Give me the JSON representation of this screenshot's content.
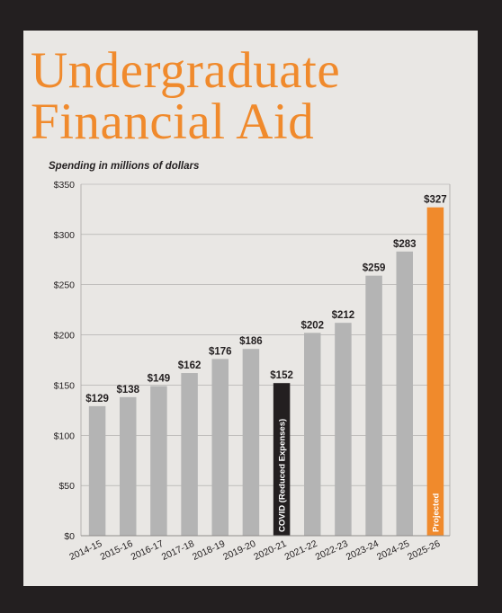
{
  "title_line1": "Undergraduate",
  "title_line2": "Financial Aid",
  "subtitle": "Spending in millions of dollars",
  "chart_data": {
    "type": "bar",
    "title": "Undergraduate Financial Aid",
    "subtitle": "Spending in millions of dollars",
    "xlabel": "",
    "ylabel": "",
    "ylim": [
      0,
      350
    ],
    "yticks": [
      0,
      50,
      100,
      150,
      200,
      250,
      300,
      350
    ],
    "ytick_labels": [
      "$0",
      "$50",
      "$100",
      "$150",
      "$200",
      "$250",
      "$300",
      "$350"
    ],
    "grid": true,
    "categories": [
      "2014-15",
      "2015-16",
      "2016-17",
      "2017-18",
      "2018-19",
      "2019-20",
      "2020-21",
      "2021-22",
      "2022-23",
      "2023-24",
      "2024-25",
      "2025-26"
    ],
    "values": [
      129,
      138,
      149,
      162,
      176,
      186,
      152,
      202,
      212,
      259,
      283,
      327
    ],
    "value_labels": [
      "$129",
      "$138",
      "$149",
      "$162",
      "$176",
      "$186",
      "$152",
      "$202",
      "$212",
      "$259",
      "$283",
      "$327"
    ],
    "bar_colors": [
      "#b4b4b4",
      "#b4b4b4",
      "#b4b4b4",
      "#b4b4b4",
      "#b4b4b4",
      "#b4b4b4",
      "#231f20",
      "#b4b4b4",
      "#b4b4b4",
      "#b4b4b4",
      "#b4b4b4",
      "#f08a2c"
    ],
    "bar_annotations": {
      "6": "COVID (Reduced Expenses)",
      "11": "Projected"
    }
  },
  "colors": {
    "background": "#231f20",
    "panel": "#e9e7e4",
    "title": "#f08a2c",
    "bar_default": "#b4b4b4",
    "bar_covid": "#231f20",
    "bar_projected": "#f08a2c"
  }
}
